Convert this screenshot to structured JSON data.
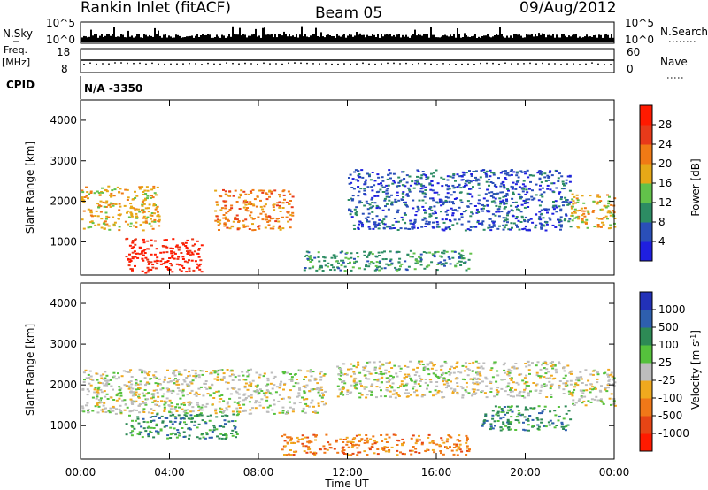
{
  "header": {
    "station": "Rankin Inlet (fitACF)",
    "beam": "Beam 05",
    "date": "09/Aug/2012"
  },
  "top_panels": {
    "nsky_label": "N.Sky",
    "nsky_ticks": [
      "10^5",
      "10^0"
    ],
    "nsearch_label": "N.Search",
    "nsearch_ticks": [
      "10^5",
      "10^0"
    ],
    "freq_label_line1": "Freq.",
    "freq_label_line2": "[MHz]",
    "freq_ticks": [
      "18",
      "8"
    ],
    "nave_label": "Nave",
    "nave_ticks": [
      "60",
      "0"
    ],
    "cpid_label": "CPID",
    "cpid_value": "N/A -3350"
  },
  "chart_data": [
    {
      "type": "heatmap",
      "panel": "power",
      "ylabel": "Slant Range [km]",
      "xlabel": "",
      "ylim": [
        180,
        4500
      ],
      "y_ticks": [
        1000,
        2000,
        3000,
        4000
      ],
      "xlim_hours": [
        0,
        24
      ],
      "x_tick_labels": [
        "00:00",
        "04:00",
        "08:00",
        "12:00",
        "16:00",
        "20:00",
        "00:00"
      ],
      "colorbar": {
        "label": "Power [dB]",
        "ticks": [
          "4",
          "8",
          "12",
          "16",
          "20",
          "24",
          "28"
        ],
        "colors": [
          "#1f1fe0",
          "#2a4fb8",
          "#2c8c63",
          "#62c24a",
          "#e6a817",
          "#f07a15",
          "#e83a1a",
          "#ff1a00"
        ]
      },
      "features": [
        {
          "t": [
            0.0,
            3.5
          ],
          "range_km": [
            1300,
            2400
          ],
          "level": "16-24 dB"
        },
        {
          "t": [
            2.0,
            5.5
          ],
          "range_km": [
            250,
            1100
          ],
          "level": ">28 dB"
        },
        {
          "t": [
            6.0,
            9.5
          ],
          "range_km": [
            1300,
            2300
          ],
          "level": "20-28 dB"
        },
        {
          "t": [
            12.0,
            22.0
          ],
          "range_km": [
            1300,
            2800
          ],
          "level": "4-12 dB"
        },
        {
          "t": [
            10.0,
            17.5
          ],
          "range_km": [
            300,
            800
          ],
          "level": "8-20 dB"
        },
        {
          "t": [
            22.0,
            24.0
          ],
          "range_km": [
            1300,
            2200
          ],
          "level": "16-28 dB"
        }
      ]
    },
    {
      "type": "heatmap",
      "panel": "velocity",
      "ylabel": "Slant Range [km]",
      "xlabel": "Time UT",
      "ylim": [
        180,
        4500
      ],
      "y_ticks": [
        1000,
        2000,
        3000,
        4000
      ],
      "xlim_hours": [
        0,
        24
      ],
      "x_tick_labels": [
        "00:00",
        "04:00",
        "08:00",
        "12:00",
        "16:00",
        "20:00",
        "00:00"
      ],
      "colorbar": {
        "label": "Velocity [m s^-1]",
        "label_main": "Velocity [m s",
        "label_sup": "-1",
        "label_end": "]",
        "ticks": [
          "1000",
          "500",
          "100",
          "25",
          "-25",
          "-100",
          "-500",
          "-1000"
        ],
        "colors": [
          "#2231b8",
          "#2e5fae",
          "#2d8a55",
          "#55c13c",
          "#bdbdbd",
          "#f0a91e",
          "#f07818",
          "#e64515",
          "#ff1a00"
        ]
      },
      "features": [
        {
          "t": [
            0.0,
            11.0
          ],
          "range_km": [
            1300,
            2400
          ],
          "level": "-25..25 (ground scatter)"
        },
        {
          "t": [
            2.0,
            7.0
          ],
          "range_km": [
            700,
            1300
          ],
          "level": "100-500"
        },
        {
          "t": [
            9.0,
            17.5
          ],
          "range_km": [
            300,
            800
          ],
          "level": "-100..-500"
        },
        {
          "t": [
            11.5,
            22.0
          ],
          "range_km": [
            1700,
            2600
          ],
          "level": "-25..25"
        },
        {
          "t": [
            18.0,
            22.0
          ],
          "range_km": [
            900,
            1500
          ],
          "level": "100-500"
        },
        {
          "t": [
            22.0,
            24.0
          ],
          "range_km": [
            1500,
            2400
          ],
          "level": "-25..25"
        }
      ]
    }
  ]
}
